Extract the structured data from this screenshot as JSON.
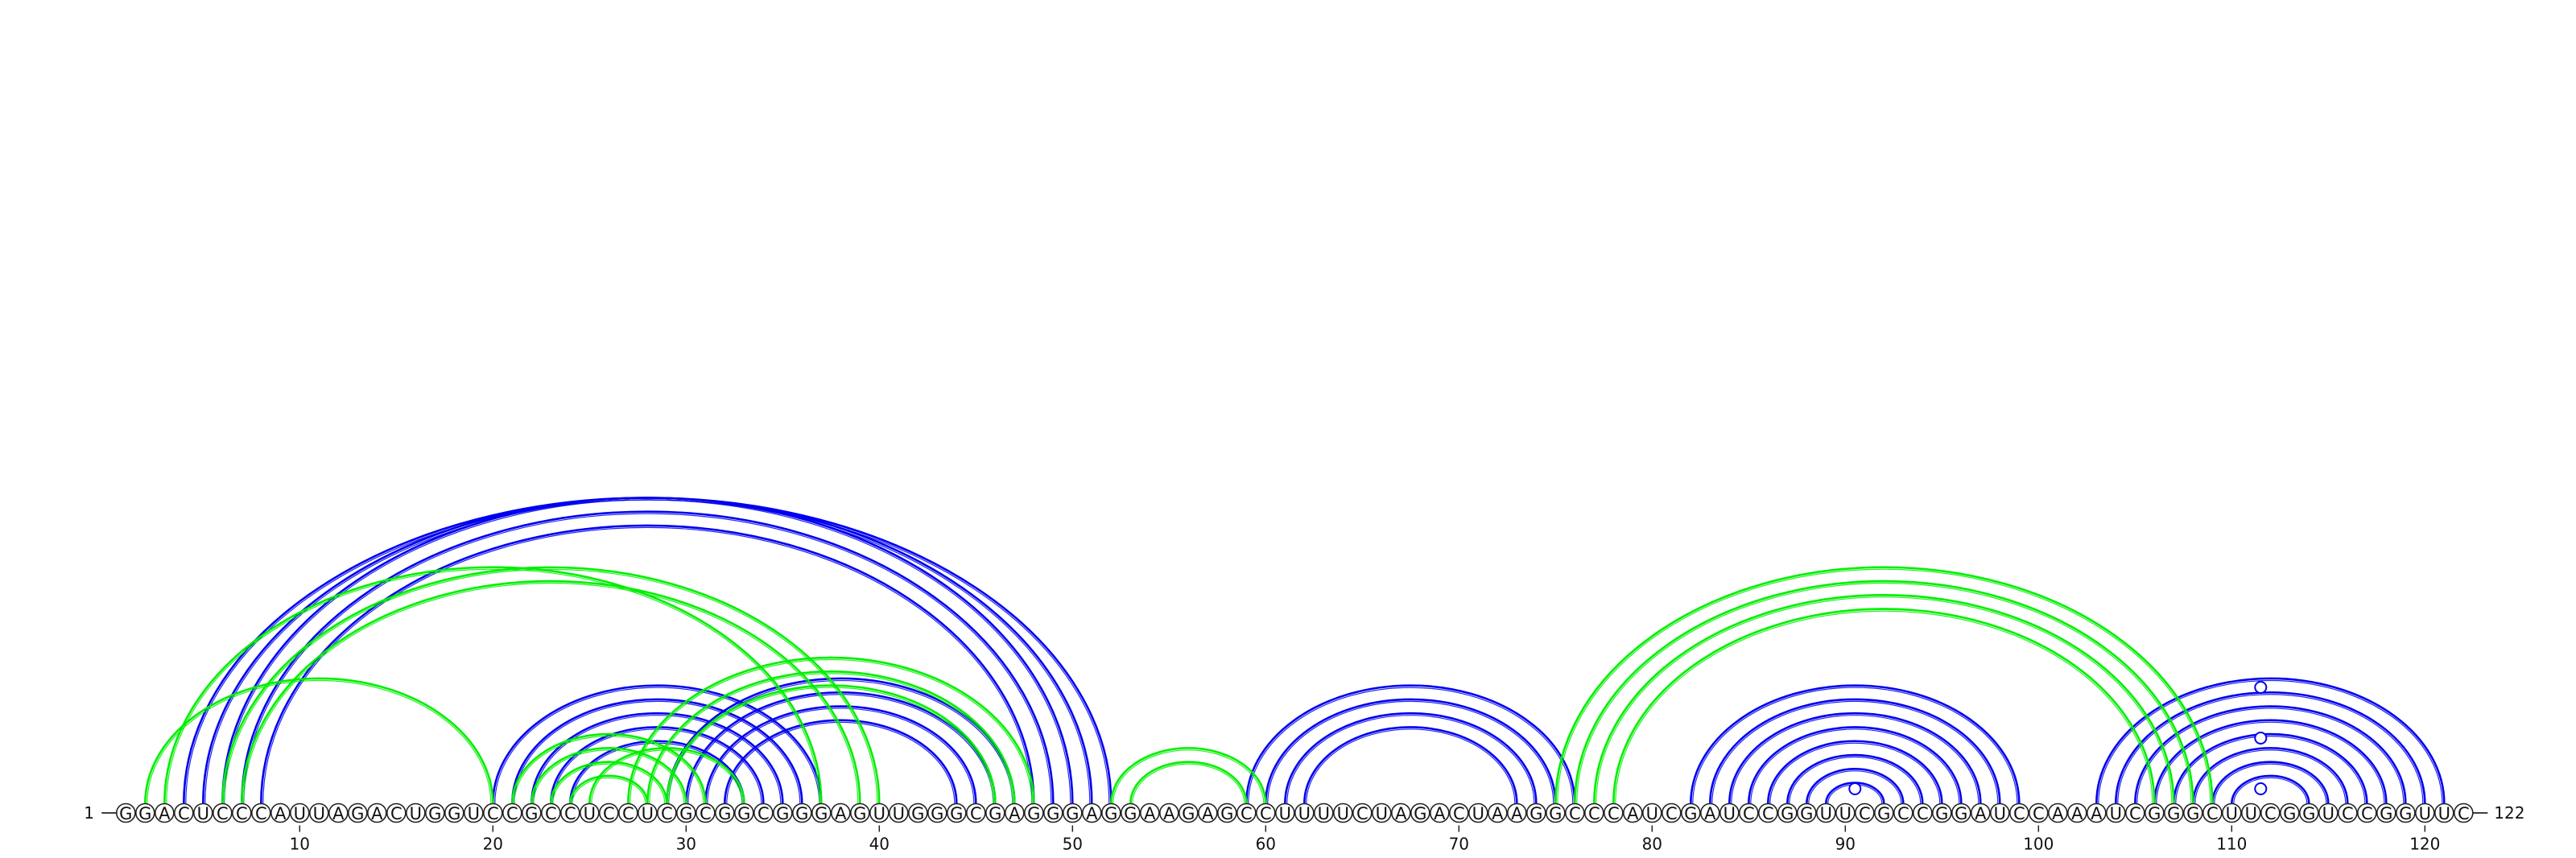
{
  "sequence": "GGACUCCCAUUAGACUGGUCCGCCUCCUCGCGGCGGGAGUUGGGCGAGGGAGGAAGAGCCUUUUCUAGACUAAGGCCCAUCGAUCCGGUUCGCCGGAUCCAAAUCGGGCUUCGGUCCGGUUC",
  "start_label": "1",
  "end_label": "122",
  "ticks": [
    10,
    20,
    30,
    40,
    50,
    60,
    70,
    80,
    90,
    100,
    110,
    120
  ],
  "colors": {
    "structure_a": "#0000ee",
    "structure_b": "#00ee00",
    "outline": "#222222"
  },
  "structures": [
    {
      "id": "structure_a",
      "pairs": [
        [
          4,
          52
        ],
        [
          5,
          51
        ],
        [
          6,
          50
        ],
        [
          7,
          49
        ],
        [
          8,
          48
        ],
        [
          20,
          37
        ],
        [
          21,
          36
        ],
        [
          22,
          35
        ],
        [
          23,
          34
        ],
        [
          24,
          33
        ],
        [
          29,
          47
        ],
        [
          30,
          46
        ],
        [
          31,
          45
        ],
        [
          32,
          44
        ],
        [
          59,
          76
        ],
        [
          60,
          75
        ],
        [
          61,
          74
        ],
        [
          62,
          73
        ],
        [
          82,
          99
        ],
        [
          83,
          98
        ],
        [
          84,
          97
        ],
        [
          85,
          96
        ],
        [
          86,
          95
        ],
        [
          87,
          94
        ],
        [
          88,
          93
        ],
        [
          89,
          92
        ],
        [
          103,
          121
        ],
        [
          104,
          120
        ],
        [
          105,
          119
        ],
        [
          106,
          118
        ],
        [
          107,
          117
        ],
        [
          108,
          116
        ],
        [
          109,
          115
        ],
        [
          110,
          114
        ]
      ]
    },
    {
      "id": "structure_b",
      "pairs": [
        [
          2,
          20
        ],
        [
          3,
          37
        ],
        [
          6,
          40
        ],
        [
          7,
          39
        ],
        [
          21,
          31
        ],
        [
          22,
          30
        ],
        [
          23,
          29
        ],
        [
          24,
          28
        ],
        [
          25,
          33
        ],
        [
          27,
          48
        ],
        [
          28,
          47
        ],
        [
          29,
          46
        ],
        [
          52,
          60
        ],
        [
          53,
          59
        ],
        [
          75,
          109
        ],
        [
          76,
          108
        ],
        [
          77,
          107
        ],
        [
          78,
          106
        ]
      ]
    }
  ],
  "loop_markers": [
    90,
    111
  ]
}
